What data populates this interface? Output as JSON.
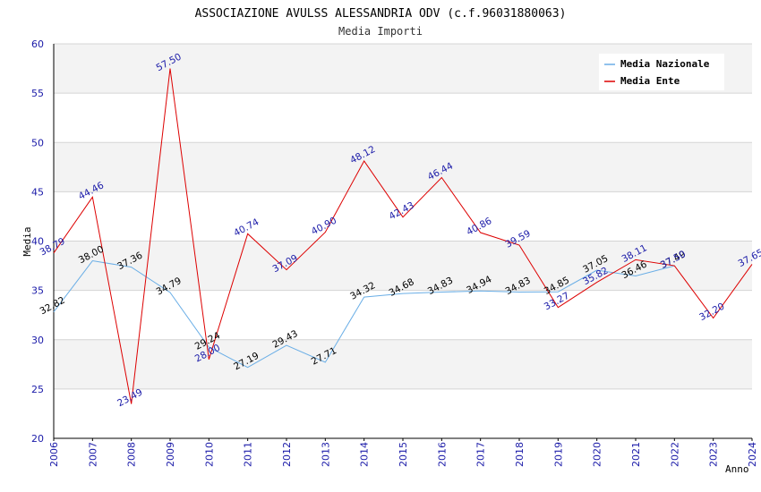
{
  "chart_data": {
    "type": "line",
    "title": "ASSOCIAZIONE AVULSS ALESSANDRIA ODV (c.f.96031880063)",
    "subtitle": "Media Importi",
    "xlabel": "Anno",
    "ylabel": "Media",
    "ylim": [
      20,
      60
    ],
    "yticks": [
      "20",
      "25",
      "30",
      "35",
      "40",
      "45",
      "50",
      "55",
      "60"
    ],
    "x": [
      "2006",
      "2007",
      "2008",
      "2009",
      "2010",
      "2011",
      "2012",
      "2013",
      "2014",
      "2015",
      "2016",
      "2017",
      "2018",
      "2019",
      "2020",
      "2021",
      "2022",
      "2023",
      "2024"
    ],
    "legend_position": "top-right",
    "series": [
      {
        "name": "Media Nazionale",
        "color": "#6aaee6",
        "label_color": "#000000",
        "values": [
          32.82,
          38.0,
          37.36,
          34.79,
          29.24,
          27.19,
          29.43,
          27.71,
          34.32,
          34.68,
          34.83,
          34.94,
          34.83,
          34.85,
          37.05,
          36.46,
          37.49,
          null,
          null
        ],
        "labels": [
          "32.82",
          "38.00",
          "37.36",
          "34.79",
          "29.24",
          "27.19",
          "29.43",
          "27.71",
          "34.32",
          "34.68",
          "34.83",
          "34.94",
          "34.83",
          "34.85",
          "37.05",
          "36.46",
          "37.49",
          "",
          ""
        ]
      },
      {
        "name": "Media Ente",
        "color": "#dd0000",
        "label_color": "#1a1aa8",
        "values": [
          38.79,
          44.46,
          23.49,
          57.5,
          28.0,
          40.74,
          37.09,
          40.9,
          48.12,
          42.43,
          46.44,
          40.86,
          39.59,
          33.27,
          35.82,
          38.11,
          37.5,
          32.2,
          37.65
        ],
        "labels": [
          "38.79",
          "44.46",
          "23.49",
          "57.50",
          "28.00",
          "40.74",
          "37.09",
          "40.90",
          "48.12",
          "42.43",
          "46.44",
          "40.86",
          "39.59",
          "33.27",
          "35.82",
          "38.11",
          "37.50",
          "32.20",
          "37.65"
        ]
      }
    ]
  }
}
